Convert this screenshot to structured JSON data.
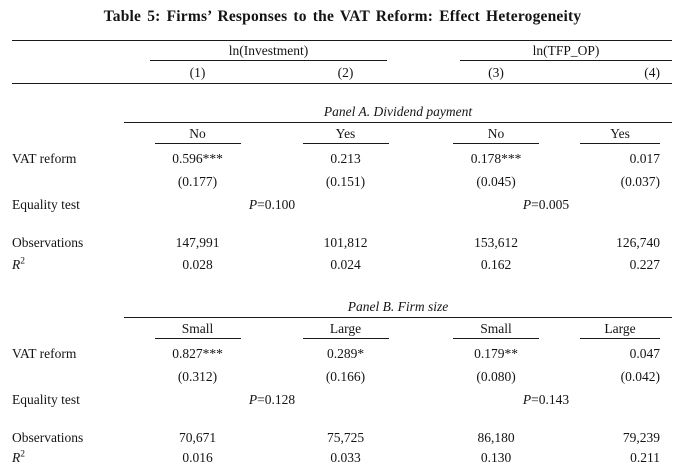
{
  "title": "Table 5: Firms’ Responses to the VAT Reform: Effect Heterogeneity",
  "table": {
    "dep_var_groups": [
      {
        "label": "ln(Investment)",
        "columns": [
          "(1)",
          "(2)"
        ]
      },
      {
        "label": "ln(TFP_OP)",
        "columns": [
          "(3)",
          "(4)"
        ]
      }
    ],
    "row_labels": {
      "vat_reform": "VAT reform",
      "equality_test": "Equality test",
      "observations": "Observations",
      "r_label": "R",
      "r_sup": "2",
      "p_label": "P"
    },
    "panels": [
      {
        "title": "Panel A. Dividend payment",
        "group_headers": [
          "No",
          "Yes",
          "No",
          "Yes"
        ],
        "coefficients": [
          "0.596***",
          "0.213",
          "0.178***",
          "0.017"
        ],
        "std_errors": [
          "(0.177)",
          "(0.151)",
          "(0.045)",
          "(0.037)"
        ],
        "equality_p_values": [
          "=0.100",
          "=0.005"
        ],
        "observations": [
          "147,991",
          "101,812",
          "153,612",
          "126,740"
        ],
        "r_squared": [
          "0.028",
          "0.024",
          "0.162",
          "0.227"
        ]
      },
      {
        "title": "Panel B. Firm size",
        "group_headers": [
          "Small",
          "Large",
          "Small",
          "Large"
        ],
        "coefficients": [
          "0.827***",
          "0.289*",
          "0.179**",
          "0.047"
        ],
        "std_errors": [
          "(0.312)",
          "(0.166)",
          "(0.080)",
          "(0.042)"
        ],
        "equality_p_values": [
          "=0.128",
          "=0.143"
        ],
        "observations": [
          "70,671",
          "75,725",
          "86,180",
          "79,239"
        ],
        "r_squared": [
          "0.016",
          "0.033",
          "0.130",
          "0.211"
        ]
      }
    ]
  }
}
